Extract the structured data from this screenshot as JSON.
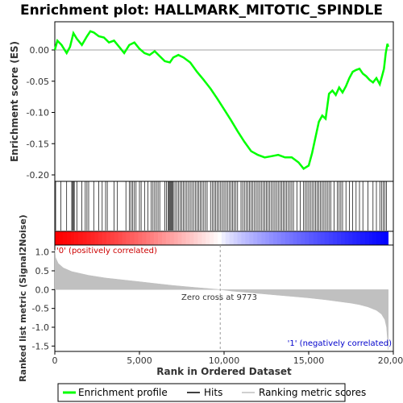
{
  "chart_data": {
    "type": "line",
    "title": "Enrichment plot: HALLMARK_MITOTIC_SPINDLE",
    "es_panel": {
      "ylabel": "Enrichment score (ES)",
      "ylim": [
        -0.2,
        0.04
      ],
      "yticks": [
        "0.00",
        "-0.05",
        "-0.10",
        "-0.15",
        "-0.20"
      ],
      "ytick_values": [
        0.0,
        -0.05,
        -0.1,
        -0.15,
        -0.2
      ],
      "grid": false
    },
    "metric_panel": {
      "ylabel": "Ranked list metric (Signal2Noise)",
      "ylim": [
        -1.6,
        1.1
      ],
      "yticks": [
        "1.0",
        "0.5",
        "0.0",
        "-0.5",
        "-1.0",
        "-1.5"
      ],
      "ytick_values": [
        1.0,
        0.5,
        0.0,
        -0.5,
        -1.0,
        -1.5
      ],
      "positive_label": "'0' (positively correlated)",
      "negative_label": "'1' (negatively correlated)",
      "zero_cross_label": "Zero cross at 9773",
      "zero_cross": 9773
    },
    "xlabel": "Rank in Ordered Dataset",
    "xlim": [
      0,
      20000
    ],
    "xticks": [
      "0",
      "5,000",
      "10,000",
      "15,000",
      "20,000"
    ],
    "xtick_values": [
      0,
      5000,
      10000,
      15000,
      20000
    ],
    "n_genes": 19700,
    "series": [
      {
        "name": "Enrichment profile",
        "color": "#00ff00",
        "x": [
          0,
          150,
          400,
          700,
          900,
          1100,
          1300,
          1600,
          1900,
          2100,
          2300,
          2600,
          2900,
          3200,
          3500,
          3800,
          4100,
          4400,
          4700,
          5000,
          5300,
          5600,
          5900,
          6200,
          6500,
          6800,
          7000,
          7300,
          7600,
          8000,
          8400,
          8800,
          9200,
          9600,
          10000,
          10400,
          10800,
          11200,
          11600,
          12000,
          12400,
          12800,
          13200,
          13600,
          14000,
          14400,
          14700,
          15000,
          15200,
          15400,
          15600,
          15800,
          16000,
          16200,
          16400,
          16600,
          16800,
          17000,
          17200,
          17400,
          17600,
          17800,
          18000,
          18200,
          18400,
          18600,
          18800,
          19000,
          19200,
          19350,
          19450,
          19550,
          19650,
          19700
        ],
        "y": [
          0.0,
          0.015,
          0.008,
          -0.005,
          0.005,
          0.027,
          0.018,
          0.008,
          0.022,
          0.03,
          0.028,
          0.022,
          0.02,
          0.012,
          0.015,
          0.005,
          -0.005,
          0.008,
          0.012,
          0.002,
          -0.005,
          -0.008,
          -0.002,
          -0.01,
          -0.018,
          -0.02,
          -0.012,
          -0.008,
          -0.012,
          -0.02,
          -0.035,
          -0.048,
          -0.062,
          -0.078,
          -0.095,
          -0.112,
          -0.13,
          -0.147,
          -0.162,
          -0.168,
          -0.172,
          -0.17,
          -0.168,
          -0.172,
          -0.172,
          -0.18,
          -0.19,
          -0.185,
          -0.165,
          -0.14,
          -0.115,
          -0.105,
          -0.11,
          -0.07,
          -0.065,
          -0.072,
          -0.06,
          -0.068,
          -0.058,
          -0.045,
          -0.035,
          -0.032,
          -0.03,
          -0.038,
          -0.042,
          -0.048,
          -0.052,
          -0.045,
          -0.055,
          -0.04,
          -0.03,
          -0.005,
          0.01,
          0.005
        ]
      },
      {
        "name": "Hits",
        "color": "#000000",
        "positions": [
          50,
          350,
          700,
          1000,
          1050,
          1100,
          1150,
          1300,
          1600,
          1800,
          1900,
          2000,
          2300,
          2600,
          2800,
          3000,
          3100,
          3500,
          3700,
          4200,
          4400,
          4500,
          4600,
          4700,
          4800,
          5000,
          5100,
          5300,
          5500,
          5700,
          5800,
          5900,
          6000,
          6100,
          6200,
          6500,
          6600,
          6700,
          6750,
          6800,
          6850,
          6900,
          6950,
          7000,
          7100,
          7200,
          7300,
          7400,
          7500,
          7600,
          7700,
          7800,
          7900,
          8000,
          8100,
          8200,
          8300,
          8400,
          8500,
          8600,
          8700,
          8800,
          8900,
          9000,
          9200,
          9300,
          9400,
          9500,
          9600,
          9700,
          9800,
          9900,
          10000,
          10100,
          10200,
          10300,
          10400,
          10500,
          10600,
          10700,
          10800,
          11000,
          11100,
          11200,
          11300,
          11400,
          11500,
          11600,
          11700,
          11800,
          11900,
          12000,
          12100,
          12200,
          12300,
          12400,
          12500,
          12600,
          12700,
          12800,
          12900,
          13000,
          13100,
          13200,
          13300,
          13400,
          13500,
          13600,
          13700,
          13800,
          13900,
          14000,
          14100,
          14300,
          14500,
          14700,
          14800,
          14900,
          15000,
          15100,
          15200,
          15300,
          15400,
          15500,
          15600,
          15700,
          15800,
          15900,
          16000,
          16100,
          16200,
          16300,
          16500,
          16700,
          16800,
          16900,
          17000,
          17200,
          17400,
          17600,
          17800,
          18000,
          18200,
          18500,
          18800,
          19000,
          19200,
          19300,
          19400,
          19500,
          19600
        ]
      },
      {
        "name": "Ranking metric scores",
        "color": "#c0c0c0",
        "x": [
          0,
          50,
          200,
          500,
          1000,
          2000,
          3000,
          4000,
          5000,
          6000,
          7000,
          8000,
          9000,
          9773,
          10500,
          11000,
          12000,
          13000,
          14000,
          15000,
          16000,
          17000,
          17500,
          18000,
          18500,
          19000,
          19300,
          19500,
          19600,
          19650,
          19700
        ],
        "y": [
          1.05,
          0.85,
          0.7,
          0.58,
          0.48,
          0.38,
          0.31,
          0.26,
          0.21,
          0.16,
          0.11,
          0.07,
          0.03,
          0.0,
          -0.04,
          -0.06,
          -0.1,
          -0.14,
          -0.18,
          -0.22,
          -0.27,
          -0.33,
          -0.36,
          -0.4,
          -0.46,
          -0.55,
          -0.65,
          -0.8,
          -1.0,
          -1.3,
          -1.6
        ]
      }
    ],
    "legend": {
      "placement": "bottom",
      "entries": [
        "Enrichment profile",
        "Hits",
        "Ranking metric scores"
      ]
    },
    "colors": {
      "profile": "#00ff00",
      "hits": "#000000",
      "metric": "#c0c0c0",
      "positive": "#ff0000",
      "negative": "#0000ff",
      "positive_text": "#cc0000",
      "negative_text": "#0000cc"
    }
  }
}
